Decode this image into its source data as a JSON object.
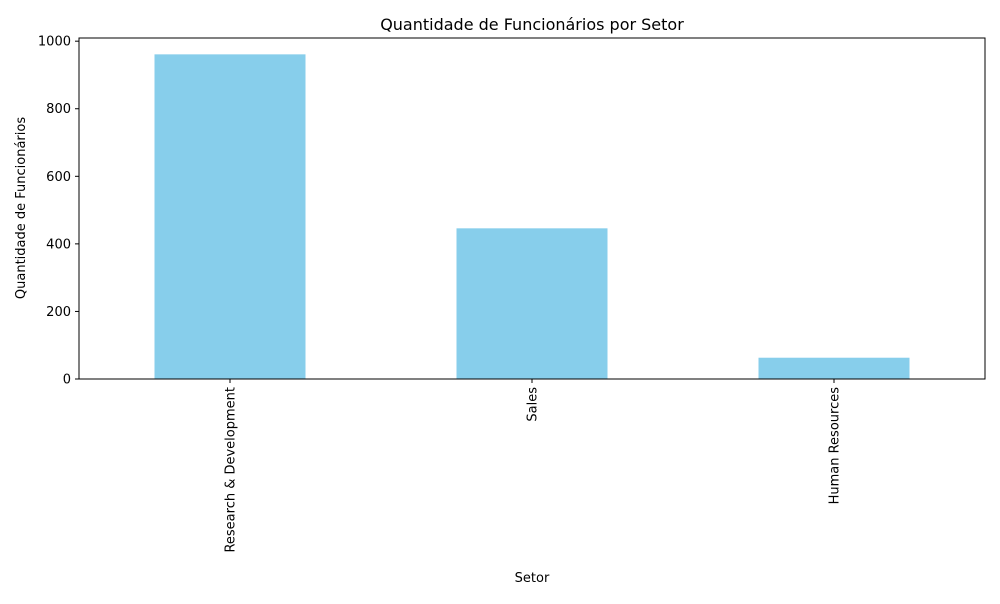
{
  "chart_data": {
    "type": "bar",
    "title": "Quantidade de Funcionários por Setor",
    "xlabel": "Setor",
    "ylabel": "Quantidade de Funcionários",
    "categories": [
      "Research & Development",
      "Sales",
      "Human Resources"
    ],
    "values": [
      961,
      446,
      63
    ],
    "ylim": [
      0,
      1009.4
    ],
    "yticks": [
      0,
      200,
      400,
      600,
      800,
      1000
    ],
    "grid": false,
    "legend": "none",
    "bar_color": "#87CEEB",
    "tick_label_rotation": "vertical"
  }
}
